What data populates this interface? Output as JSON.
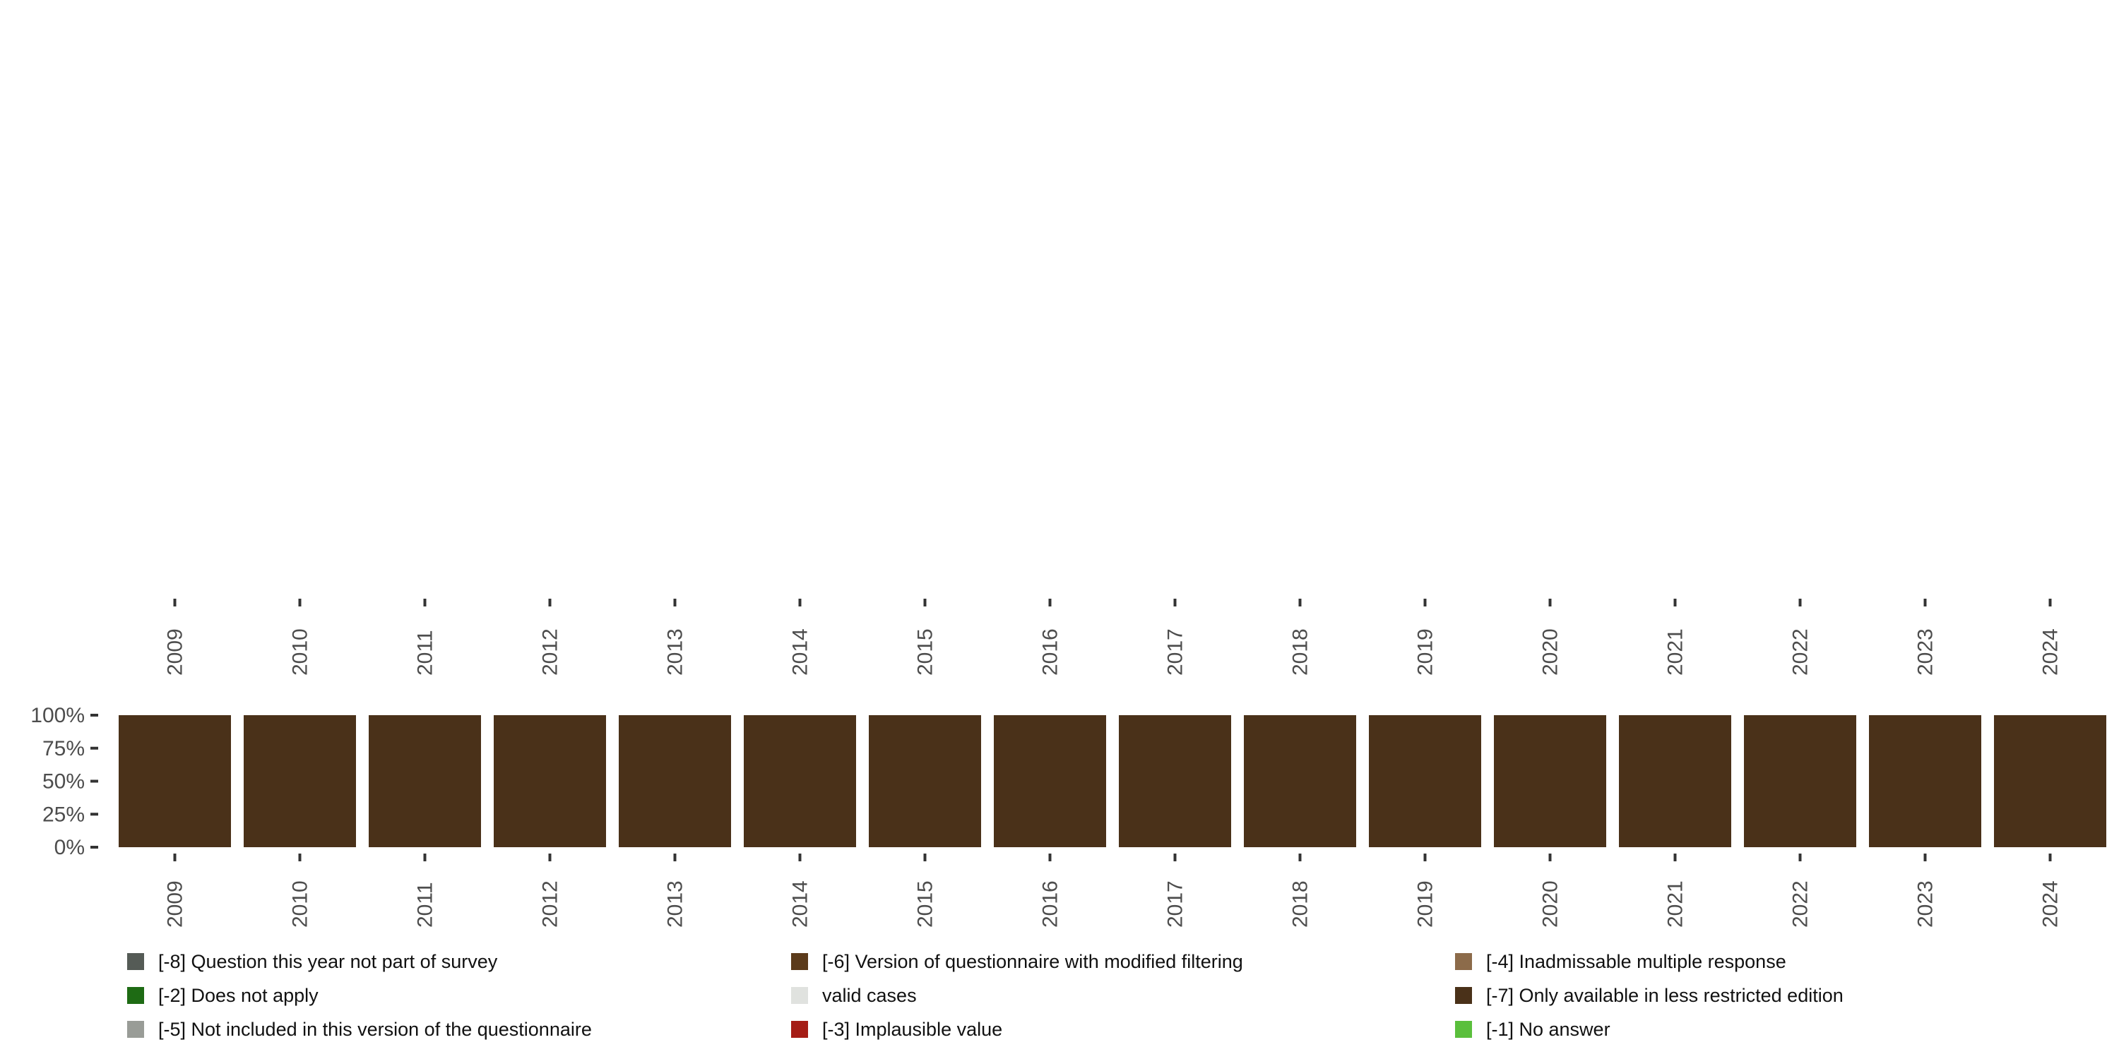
{
  "chart_data": {
    "type": "bar",
    "stacked": true,
    "title": "",
    "xlabel": "",
    "ylabel": "",
    "ylim": [
      0,
      1
    ],
    "y_ticks": [
      "0%",
      "25%",
      "50%",
      "75%",
      "100%"
    ],
    "y_tick_values": [
      0,
      0.25,
      0.5,
      0.75,
      1
    ],
    "categories": [
      "2009",
      "2010",
      "2011",
      "2012",
      "2013",
      "2014",
      "2015",
      "2016",
      "2017",
      "2018",
      "2019",
      "2020",
      "2021",
      "2022",
      "2023",
      "2024"
    ],
    "series": [
      {
        "name": "[-8] Question this year not part of survey",
        "color": "#555b56",
        "values": [
          0,
          0,
          0,
          0,
          0,
          0,
          0,
          0,
          0,
          0,
          0,
          0,
          0,
          0,
          0,
          0
        ]
      },
      {
        "name": "[-7] Only available in less restricted edition",
        "color": "#4a3119",
        "values": [
          1,
          1,
          1,
          1,
          1,
          1,
          1,
          1,
          1,
          1,
          1,
          1,
          1,
          1,
          1,
          1
        ]
      },
      {
        "name": "[-6] Version of questionnaire with modified filtering",
        "color": "#5c3b1b",
        "values": [
          0,
          0,
          0,
          0,
          0,
          0,
          0,
          0,
          0,
          0,
          0,
          0,
          0,
          0,
          0,
          0
        ]
      },
      {
        "name": "[-5] Not included in this version of the questionnaire",
        "color": "#999c97",
        "values": [
          0,
          0,
          0,
          0,
          0,
          0,
          0,
          0,
          0,
          0,
          0,
          0,
          0,
          0,
          0,
          0
        ]
      },
      {
        "name": "[-4] Inadmissable multiple response",
        "color": "#8c6b4a",
        "values": [
          0,
          0,
          0,
          0,
          0,
          0,
          0,
          0,
          0,
          0,
          0,
          0,
          0,
          0,
          0,
          0
        ]
      },
      {
        "name": "[-3] Implausible value",
        "color": "#a51d16",
        "values": [
          0,
          0,
          0,
          0,
          0,
          0,
          0,
          0,
          0,
          0,
          0,
          0,
          0,
          0,
          0,
          0
        ]
      },
      {
        "name": "[-2] Does not apply",
        "color": "#1e6b14",
        "values": [
          0,
          0,
          0,
          0,
          0,
          0,
          0,
          0,
          0,
          0,
          0,
          0,
          0,
          0,
          0,
          0
        ]
      },
      {
        "name": "[-1] No answer",
        "color": "#5abf3c",
        "values": [
          0,
          0,
          0,
          0,
          0,
          0,
          0,
          0,
          0,
          0,
          0,
          0,
          0,
          0,
          0,
          0
        ]
      },
      {
        "name": "valid cases",
        "color": "#e0e2df",
        "values": [
          0,
          0,
          0,
          0,
          0,
          0,
          0,
          0,
          0,
          0,
          0,
          0,
          0,
          0,
          0,
          0
        ]
      }
    ],
    "legend_position": "bottom",
    "legend_order": [
      0,
      2,
      4,
      6,
      8,
      1,
      3,
      5,
      7
    ],
    "grid": false
  }
}
